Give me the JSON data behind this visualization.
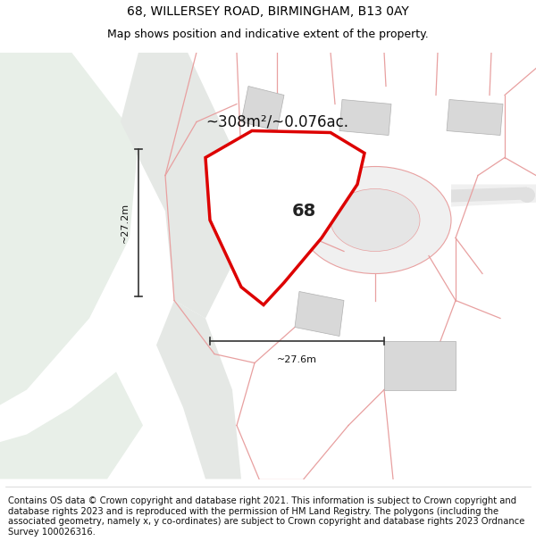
{
  "title": "68, WILLERSEY ROAD, BIRMINGHAM, B13 0AY",
  "subtitle": "Map shows position and indicative extent of the property.",
  "area_label": "~308m²/~0.076ac.",
  "property_number": "68",
  "width_label": "~27.6m",
  "height_label": "~27.2m",
  "footer": "Contains OS data © Crown copyright and database right 2021. This information is subject to Crown copyright and database rights 2023 and is reproduced with the permission of HM Land Registry. The polygons (including the associated geometry, namely x, y co-ordinates) are subject to Crown copyright and database rights 2023 Ordnance Survey 100026316.",
  "bg_color": "#ffffff",
  "map_bg": "#ffffff",
  "green_color": "#e8efe8",
  "green_dark": "#d5e4d5",
  "road_gray": "#e0e0e0",
  "building_gray": "#d8d8d8",
  "building_outline": "#b0b0b0",
  "road_line_color": "#e8a0a0",
  "property_fill": "#ffffff",
  "property_edge": "#dd0000",
  "dim_line_color": "#333333",
  "title_fontsize": 10,
  "subtitle_fontsize": 9,
  "footer_fontsize": 7.2,
  "label_fontsize": 8,
  "area_fontsize": 12,
  "number_fontsize": 14
}
